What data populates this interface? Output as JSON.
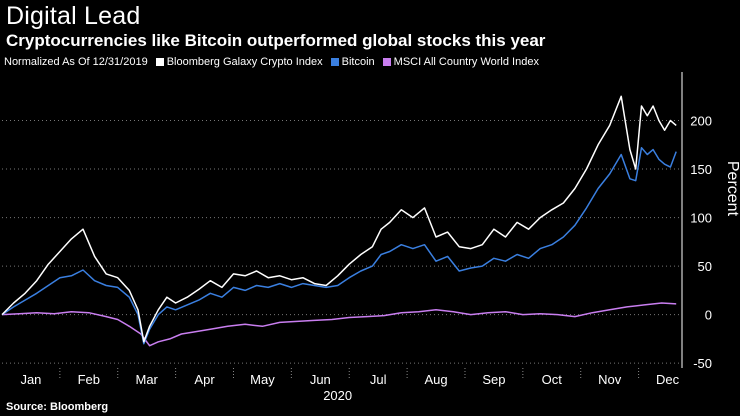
{
  "header": {
    "title": "Digital Lead",
    "subtitle": "Cryptocurrencies like Bitcoin outperformed global stocks this year"
  },
  "legend": {
    "note": "Normalized As Of 12/31/2019",
    "items": [
      {
        "label": "Bloomberg Galaxy Crypto Index",
        "color": "#ffffff"
      },
      {
        "label": "Bitcoin",
        "color": "#3a7fe0"
      },
      {
        "label": "MSCI All Country World Index",
        "color": "#c97ef0"
      }
    ]
  },
  "footer": {
    "source": "Source: Bloomberg"
  },
  "chart_data": {
    "type": "line",
    "title": "Digital Lead",
    "subtitle": "Cryptocurrencies like Bitcoin outperformed global stocks this year",
    "xlabel": "2020",
    "ylabel": "Percent",
    "ylim": [
      -55,
      250
    ],
    "xlim": [
      0,
      11.75
    ],
    "yticks": [
      -50,
      0,
      50,
      100,
      150,
      200
    ],
    "ytick_labels": [
      "-50",
      "0",
      "50",
      "100",
      "150",
      "200"
    ],
    "xtick_labels": [
      "Jan",
      "Feb",
      "Mar",
      "Apr",
      "May",
      "Jun",
      "Jul",
      "Aug",
      "Sep",
      "Oct",
      "Nov",
      "Dec"
    ],
    "year_label": "2020",
    "grid": true,
    "series": [
      {
        "name": "Bloomberg Galaxy Crypto Index",
        "color": "#ffffff",
        "x": [
          0,
          0.2,
          0.4,
          0.6,
          0.8,
          1.0,
          1.2,
          1.4,
          1.6,
          1.8,
          2.0,
          2.2,
          2.35,
          2.45,
          2.55,
          2.7,
          2.85,
          3.0,
          3.2,
          3.4,
          3.6,
          3.8,
          4.0,
          4.2,
          4.4,
          4.6,
          4.8,
          5.0,
          5.2,
          5.4,
          5.6,
          5.8,
          6.0,
          6.2,
          6.4,
          6.55,
          6.7,
          6.9,
          7.1,
          7.3,
          7.5,
          7.7,
          7.9,
          8.1,
          8.3,
          8.5,
          8.7,
          8.9,
          9.1,
          9.3,
          9.5,
          9.7,
          9.9,
          10.1,
          10.3,
          10.5,
          10.7,
          10.85,
          10.95,
          11.05,
          11.15,
          11.25,
          11.35,
          11.45,
          11.55,
          11.65
        ],
        "values": [
          0,
          12,
          22,
          35,
          52,
          65,
          78,
          88,
          60,
          42,
          38,
          25,
          5,
          -28,
          -12,
          5,
          18,
          12,
          18,
          26,
          35,
          28,
          42,
          40,
          45,
          38,
          40,
          36,
          38,
          32,
          30,
          40,
          52,
          62,
          70,
          88,
          95,
          108,
          100,
          110,
          80,
          85,
          70,
          68,
          72,
          88,
          80,
          95,
          88,
          100,
          108,
          115,
          130,
          150,
          175,
          195,
          225,
          170,
          150,
          215,
          205,
          215,
          200,
          190,
          200,
          195
        ]
      },
      {
        "name": "Bitcoin",
        "color": "#3a7fe0",
        "x": [
          0,
          0.2,
          0.4,
          0.6,
          0.8,
          1.0,
          1.2,
          1.4,
          1.6,
          1.8,
          2.0,
          2.2,
          2.35,
          2.45,
          2.55,
          2.7,
          2.85,
          3.0,
          3.2,
          3.4,
          3.6,
          3.8,
          4.0,
          4.2,
          4.4,
          4.6,
          4.8,
          5.0,
          5.2,
          5.4,
          5.6,
          5.8,
          6.0,
          6.2,
          6.4,
          6.55,
          6.7,
          6.9,
          7.1,
          7.3,
          7.5,
          7.7,
          7.9,
          8.1,
          8.3,
          8.5,
          8.7,
          8.9,
          9.1,
          9.3,
          9.5,
          9.7,
          9.9,
          10.1,
          10.3,
          10.5,
          10.7,
          10.85,
          10.95,
          11.05,
          11.15,
          11.25,
          11.35,
          11.45,
          11.55,
          11.65
        ],
        "values": [
          0,
          8,
          15,
          22,
          30,
          38,
          40,
          46,
          35,
          30,
          28,
          18,
          0,
          -30,
          -15,
          0,
          8,
          5,
          10,
          15,
          22,
          18,
          28,
          25,
          30,
          28,
          32,
          28,
          32,
          30,
          28,
          30,
          38,
          45,
          50,
          62,
          65,
          72,
          68,
          72,
          55,
          60,
          45,
          48,
          50,
          58,
          55,
          62,
          58,
          68,
          72,
          80,
          92,
          110,
          130,
          145,
          165,
          140,
          138,
          172,
          165,
          170,
          160,
          155,
          152,
          168
        ]
      },
      {
        "name": "MSCI All Country World Index",
        "color": "#c97ef0",
        "x": [
          0,
          0.3,
          0.6,
          0.9,
          1.2,
          1.5,
          1.8,
          2.0,
          2.2,
          2.4,
          2.55,
          2.7,
          2.9,
          3.1,
          3.3,
          3.6,
          3.9,
          4.2,
          4.5,
          4.8,
          5.1,
          5.4,
          5.7,
          6.0,
          6.3,
          6.6,
          6.9,
          7.2,
          7.5,
          7.8,
          8.1,
          8.4,
          8.7,
          9.0,
          9.3,
          9.6,
          9.9,
          10.2,
          10.5,
          10.8,
          11.1,
          11.4,
          11.65
        ],
        "values": [
          0,
          1,
          2,
          1,
          3,
          2,
          -2,
          -5,
          -12,
          -20,
          -32,
          -28,
          -25,
          -20,
          -18,
          -15,
          -12,
          -10,
          -12,
          -8,
          -7,
          -6,
          -5,
          -3,
          -2,
          -1,
          2,
          3,
          5,
          3,
          0,
          2,
          3,
          0,
          1,
          0,
          -2,
          2,
          5,
          8,
          10,
          12,
          11
        ]
      }
    ]
  }
}
